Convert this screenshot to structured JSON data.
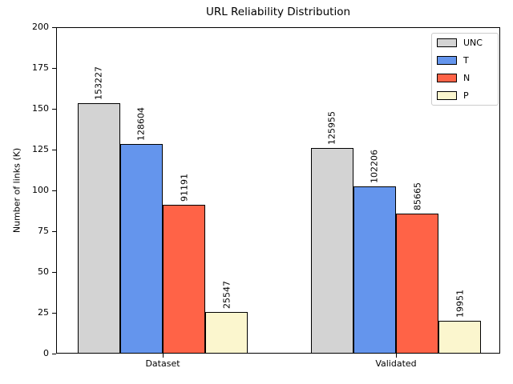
{
  "chart_data": {
    "type": "bar",
    "title": "URL Reliability Distribution",
    "xlabel": "",
    "ylabel": "Number of links (K)",
    "categories": [
      "Dataset",
      "Validated"
    ],
    "series": [
      {
        "name": "UNC",
        "color": "#d3d3d3",
        "values": [
          153227,
          125955
        ]
      },
      {
        "name": "T",
        "color": "#6495ed",
        "values": [
          128604,
          102206
        ]
      },
      {
        "name": "N",
        "color": "#ff6347",
        "values": [
          91191,
          85665
        ]
      },
      {
        "name": "P",
        "color": "#fbf6ce",
        "values": [
          25547,
          19951
        ]
      }
    ],
    "bar_edge_color": "#000000",
    "value_unit_divisor": 1000,
    "ylim": [
      0,
      200
    ],
    "yticks": [
      0,
      25,
      50,
      75,
      100,
      125,
      150,
      175,
      200
    ],
    "legend_position": "upper right",
    "grid": false,
    "bar_label_rotation": 90
  }
}
